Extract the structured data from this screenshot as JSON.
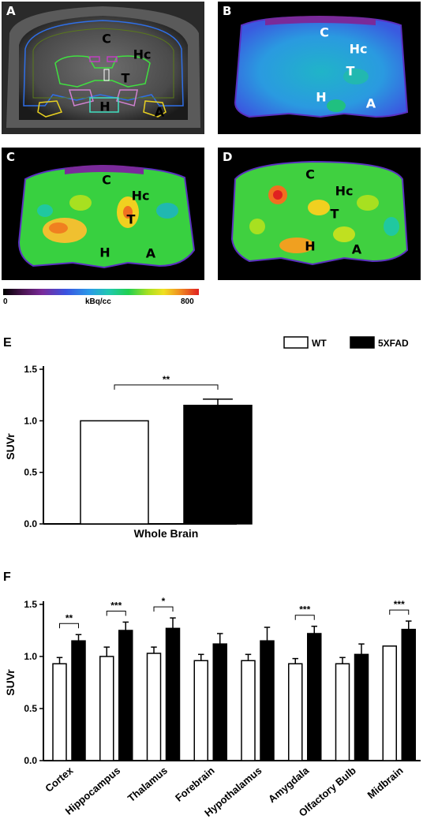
{
  "panels": {
    "a": {
      "label": "A",
      "regions": [
        {
          "name": "C",
          "x": 133,
          "y": 47
        },
        {
          "name": "Hc",
          "x": 178,
          "y": 67
        },
        {
          "name": "T",
          "x": 157,
          "y": 97
        },
        {
          "name": "H",
          "x": 131,
          "y": 133
        },
        {
          "name": "A",
          "x": 200,
          "y": 140
        }
      ]
    },
    "b": {
      "label": "B",
      "regions": [
        {
          "name": "C",
          "x": 135,
          "y": 39
        },
        {
          "name": "Hc",
          "x": 178,
          "y": 60
        },
        {
          "name": "T",
          "x": 168,
          "y": 88
        },
        {
          "name": "H",
          "x": 131,
          "y": 121
        },
        {
          "name": "A",
          "x": 194,
          "y": 129
        }
      ]
    },
    "c": {
      "label": "C",
      "regions": [
        {
          "name": "C",
          "x": 133,
          "y": 41
        },
        {
          "name": "Hc",
          "x": 176,
          "y": 61
        },
        {
          "name": "T",
          "x": 164,
          "y": 91
        },
        {
          "name": "H",
          "x": 131,
          "y": 133
        },
        {
          "name": "A",
          "x": 189,
          "y": 134
        }
      ]
    },
    "d": {
      "label": "D",
      "regions": [
        {
          "name": "C",
          "x": 117,
          "y": 34
        },
        {
          "name": "Hc",
          "x": 160,
          "y": 55
        },
        {
          "name": "T",
          "x": 148,
          "y": 84
        },
        {
          "name": "H",
          "x": 117,
          "y": 125
        },
        {
          "name": "A",
          "x": 176,
          "y": 129
        }
      ]
    }
  },
  "colorbar": {
    "min": "0",
    "unit": "kBq/cc",
    "max": "800"
  },
  "figure_letters": {
    "e": "E",
    "f": "F"
  },
  "colors": {
    "wt": "#ffffff",
    "xfad": "#000000"
  },
  "chart_data": [
    {
      "type": "bar",
      "panel": "E",
      "categories": [
        "Whole Brain"
      ],
      "series": [
        {
          "name": "WT",
          "values": [
            1.0
          ],
          "errors": [
            0
          ]
        },
        {
          "name": "5XFAD",
          "values": [
            1.15
          ],
          "errors": [
            0.06
          ]
        }
      ],
      "ylabel": "SUVr",
      "ylim": [
        0,
        1.5
      ],
      "yticks": [
        "0.0",
        "0.5",
        "1.0",
        "1.5"
      ],
      "significance": [
        "**"
      ],
      "legend": "top-right"
    },
    {
      "type": "bar",
      "panel": "F",
      "categories": [
        "Cortex",
        "Hippocampus",
        "Thalamus",
        "Forebrain",
        "Hypothalamus",
        "Amygdala",
        "Olfactory Bulb",
        "Midbrain"
      ],
      "series": [
        {
          "name": "WT",
          "values": [
            0.93,
            1.0,
            1.03,
            0.96,
            0.96,
            0.93,
            0.93,
            1.1
          ],
          "errors": [
            0.06,
            0.09,
            0.06,
            0.06,
            0.06,
            0.05,
            0.06,
            0
          ]
        },
        {
          "name": "5XFAD",
          "values": [
            1.15,
            1.25,
            1.27,
            1.12,
            1.15,
            1.22,
            1.02,
            1.26
          ],
          "errors": [
            0.06,
            0.08,
            0.1,
            0.1,
            0.13,
            0.07,
            0.1,
            0.08
          ]
        }
      ],
      "ylabel": "SUVr",
      "ylim": [
        0,
        1.5
      ],
      "yticks": [
        "0.0",
        "0.5",
        "1.0",
        "1.5"
      ],
      "significance": [
        "**",
        "***",
        "*",
        "",
        "",
        "***",
        "",
        "***"
      ]
    }
  ]
}
